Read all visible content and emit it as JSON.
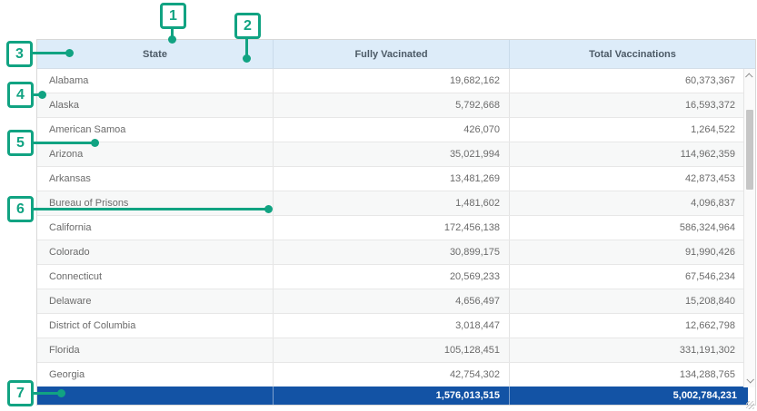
{
  "colors": {
    "accent": "#11a382",
    "header-bg": "#ddecf9",
    "total-bg": "#1353a5"
  },
  "icons": {
    "scroll_up": "chevron-up-icon",
    "scroll_down": "chevron-down-icon",
    "resize": "resize-grip-icon"
  },
  "table": {
    "columns": [
      "State",
      "Fully Vacinated",
      "Total Vaccinations"
    ],
    "rows": [
      [
        "Alabama",
        "19,682,162",
        "60,373,367"
      ],
      [
        "Alaska",
        "5,792,668",
        "16,593,372"
      ],
      [
        "American Samoa",
        "426,070",
        "1,264,522"
      ],
      [
        "Arizona",
        "35,021,994",
        "114,962,359"
      ],
      [
        "Arkansas",
        "13,481,269",
        "42,873,453"
      ],
      [
        "Bureau of Prisons",
        "1,481,602",
        "4,096,837"
      ],
      [
        "California",
        "172,456,138",
        "586,324,964"
      ],
      [
        "Colorado",
        "30,899,175",
        "91,990,426"
      ],
      [
        "Connecticut",
        "20,569,233",
        "67,546,234"
      ],
      [
        "Delaware",
        "4,656,497",
        "15,208,840"
      ],
      [
        "District of Columbia",
        "3,018,447",
        "12,662,798"
      ],
      [
        "Florida",
        "105,128,451",
        "331,191,302"
      ],
      [
        "Georgia",
        "42,754,302",
        "134,288,765"
      ]
    ],
    "totals": [
      "",
      "1,576,013,515",
      "5,002,784,231"
    ]
  },
  "callouts": [
    "1",
    "2",
    "3",
    "4",
    "5",
    "6",
    "7"
  ]
}
